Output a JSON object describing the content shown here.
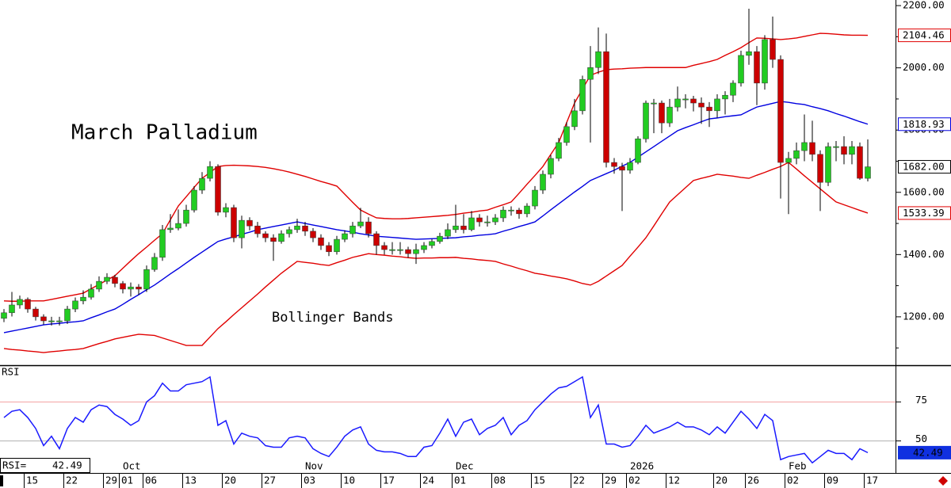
{
  "chart_data": [
    {
      "type": "candlestick",
      "title": "March Palladium",
      "annotation": "Bollinger Bands",
      "categories": [
        null,
        null,
        null,
        "15",
        null,
        null,
        null,
        null,
        "22",
        null,
        null,
        null,
        null,
        "29",
        null,
        "01",
        null,
        null,
        "06",
        null,
        null,
        null,
        null,
        "13",
        null,
        null,
        null,
        null,
        "20",
        null,
        null,
        null,
        null,
        "27",
        null,
        null,
        null,
        null,
        "03",
        null,
        null,
        null,
        null,
        "10",
        null,
        null,
        null,
        null,
        "17",
        null,
        null,
        null,
        null,
        "24",
        null,
        null,
        null,
        "01",
        null,
        null,
        null,
        null,
        "08",
        null,
        null,
        null,
        null,
        "15",
        null,
        null,
        null,
        null,
        "22",
        null,
        null,
        null,
        "29",
        null,
        null,
        "02",
        null,
        null,
        null,
        null,
        "12",
        null,
        null,
        null,
        null,
        null,
        "20",
        null,
        null,
        null,
        "26",
        null,
        null,
        null,
        null,
        "02",
        null,
        null,
        null,
        null,
        "09",
        null,
        null,
        null,
        null,
        "17"
      ],
      "month_ticks": [
        {
          "value": 15,
          "label": "Oct"
        },
        {
          "value": 38,
          "label": "Nov"
        },
        {
          "value": 57,
          "label": "Dec"
        },
        {
          "value": 79,
          "label": "2026"
        },
        {
          "value": 99,
          "label": "Feb"
        }
      ],
      "open": [
        1195,
        1213,
        1238,
        1256,
        1225,
        1200,
        1187,
        1187,
        1187,
        1225,
        1251,
        1263,
        1289,
        1314,
        1327,
        1307,
        1289,
        1296,
        1289,
        1352,
        1391,
        1480,
        1485,
        1500,
        1543,
        1607,
        1645,
        1683,
        1536,
        1551,
        1454,
        1510,
        1492,
        1467,
        1454,
        1442,
        1467,
        1480,
        1492,
        1475,
        1454,
        1429,
        1409,
        1449,
        1467,
        1492,
        1505,
        1467,
        1429,
        1416,
        1416,
        1416,
        1403,
        1416,
        1429,
        1442,
        1459,
        1480,
        1492,
        1480,
        1518,
        1505,
        1505,
        1518,
        1543,
        1543,
        1531,
        1556,
        1607,
        1658,
        1709,
        1760,
        1811,
        1862,
        1963,
        2001,
        2052,
        1696,
        1683,
        1671,
        1696,
        1772,
        1887,
        1887,
        1823,
        1874,
        1900,
        1900,
        1887,
        1874,
        1862,
        1900,
        1912,
        1951,
        2040,
        2052,
        1951,
        2091,
        2027,
        1696,
        1709,
        1734,
        1760,
        1722,
        1632,
        1747,
        1747,
        1722,
        1747,
        1645
      ],
      "high": [
        1225,
        1280,
        1268,
        1262,
        1232,
        1208,
        1200,
        1200,
        1235,
        1262,
        1285,
        1305,
        1330,
        1340,
        1335,
        1315,
        1310,
        1305,
        1365,
        1405,
        1495,
        1530,
        1545,
        1560,
        1620,
        1665,
        1700,
        1690,
        1565,
        1560,
        1525,
        1520,
        1505,
        1475,
        1465,
        1478,
        1490,
        1515,
        1505,
        1485,
        1465,
        1440,
        1460,
        1478,
        1505,
        1550,
        1520,
        1475,
        1440,
        1440,
        1440,
        1425,
        1435,
        1440,
        1450,
        1470,
        1500,
        1560,
        1530,
        1540,
        1530,
        1525,
        1530,
        1555,
        1555,
        1550,
        1565,
        1620,
        1670,
        1720,
        1775,
        1825,
        1900,
        1975,
        2070,
        2130,
        2110,
        1710,
        1695,
        1710,
        1780,
        1895,
        1900,
        1895,
        1900,
        1940,
        1915,
        1910,
        1905,
        1890,
        1915,
        1925,
        1960,
        2055,
        2190,
        2070,
        2105,
        2165,
        2040,
        1730,
        1760,
        1850,
        1830,
        1735,
        1760,
        1765,
        1780,
        1765,
        1760,
        1770
      ],
      "low": [
        1183,
        1201,
        1226,
        1213,
        1188,
        1175,
        1172,
        1172,
        1177,
        1215,
        1240,
        1255,
        1280,
        1305,
        1295,
        1275,
        1265,
        1270,
        1280,
        1345,
        1380,
        1470,
        1478,
        1490,
        1535,
        1595,
        1635,
        1525,
        1520,
        1440,
        1420,
        1478,
        1455,
        1440,
        1380,
        1435,
        1455,
        1470,
        1460,
        1440,
        1415,
        1395,
        1400,
        1440,
        1455,
        1485,
        1455,
        1400,
        1400,
        1400,
        1400,
        1390,
        1370,
        1405,
        1420,
        1435,
        1450,
        1470,
        1468,
        1475,
        1490,
        1490,
        1495,
        1505,
        1525,
        1515,
        1520,
        1545,
        1595,
        1645,
        1700,
        1750,
        1800,
        1850,
        1760,
        1980,
        1680,
        1660,
        1540,
        1660,
        1690,
        1760,
        1790,
        1790,
        1810,
        1860,
        1870,
        1860,
        1820,
        1810,
        1840,
        1850,
        1890,
        1940,
        2010,
        1880,
        1930,
        2000,
        1580,
        1530,
        1690,
        1700,
        1700,
        1540,
        1620,
        1700,
        1690,
        1690,
        1640,
        1635
      ],
      "close": [
        1213,
        1238,
        1256,
        1225,
        1200,
        1187,
        1187,
        1187,
        1225,
        1251,
        1263,
        1289,
        1314,
        1327,
        1307,
        1289,
        1296,
        1289,
        1352,
        1391,
        1480,
        1485,
        1500,
        1543,
        1607,
        1645,
        1683,
        1536,
        1551,
        1454,
        1510,
        1492,
        1467,
        1454,
        1442,
        1467,
        1480,
        1492,
        1475,
        1454,
        1429,
        1409,
        1449,
        1467,
        1492,
        1505,
        1467,
        1429,
        1416,
        1416,
        1416,
        1403,
        1416,
        1429,
        1442,
        1459,
        1480,
        1492,
        1480,
        1518,
        1505,
        1505,
        1518,
        1543,
        1543,
        1531,
        1556,
        1607,
        1658,
        1709,
        1760,
        1811,
        1862,
        1963,
        2001,
        2052,
        1696,
        1683,
        1671,
        1696,
        1772,
        1887,
        1887,
        1823,
        1874,
        1900,
        1900,
        1887,
        1874,
        1862,
        1900,
        1912,
        1951,
        2040,
        2052,
        1951,
        2091,
        2027,
        1696,
        1709,
        1734,
        1760,
        1722,
        1632,
        1747,
        1747,
        1722,
        1747,
        1645,
        1682
      ],
      "last_close_label": "1682.00",
      "up_color": "#22cc22",
      "down_color": "#cc0000",
      "wick_color": "#000000",
      "bands": [
        {
          "color": "#e00000",
          "values": [
            1251,
            1250,
            1250,
            1251,
            1251,
            1251,
            1256,
            1261,
            1266,
            1271,
            1276,
            1290,
            1304,
            1318,
            1332,
            1356,
            1380,
            1403,
            1424,
            1446,
            1467,
            1512,
            1556,
            1586,
            1616,
            1645,
            1664,
            1683,
            1686,
            1687,
            1686,
            1685,
            1683,
            1680,
            1676,
            1671,
            1665,
            1658,
            1651,
            1643,
            1635,
            1628,
            1620,
            1594,
            1568,
            1543,
            1530,
            1518,
            1516,
            1515,
            1515,
            1516,
            1518,
            1520,
            1522,
            1524,
            1526,
            1529,
            1533,
            1536,
            1540,
            1543,
            1552,
            1560,
            1569,
            1597,
            1626,
            1654,
            1683,
            1722,
            1760,
            1824,
            1887,
            1932,
            1976,
            1986,
            1994,
            1996,
            1997,
            1999,
            2000,
            2001,
            2001,
            2001,
            2001,
            2001,
            2001,
            2008,
            2014,
            2020,
            2027,
            2040,
            2052,
            2065,
            2081,
            2096,
            2095,
            2093,
            2091,
            2093,
            2096,
            2101,
            2106,
            2111,
            2110,
            2108,
            2106,
            2105,
            2105,
            2104.46
          ]
        },
        {
          "color": "#0000e0",
          "values": [
            1149,
            1154,
            1159,
            1164,
            1169,
            1174,
            1177,
            1179,
            1182,
            1184,
            1187,
            1197,
            1206,
            1216,
            1225,
            1240,
            1256,
            1271,
            1287,
            1302,
            1320,
            1338,
            1355,
            1373,
            1391,
            1408,
            1425,
            1442,
            1450,
            1457,
            1465,
            1472,
            1480,
            1485,
            1490,
            1495,
            1500,
            1505,
            1500,
            1495,
            1490,
            1485,
            1480,
            1476,
            1472,
            1467,
            1463,
            1459,
            1457,
            1455,
            1453,
            1451,
            1449,
            1450,
            1451,
            1452,
            1453,
            1454,
            1457,
            1459,
            1462,
            1464,
            1467,
            1475,
            1482,
            1490,
            1497,
            1505,
            1524,
            1544,
            1563,
            1582,
            1601,
            1619,
            1638,
            1649,
            1660,
            1671,
            1684,
            1696,
            1713,
            1730,
            1747,
            1764,
            1781,
            1798,
            1808,
            1817,
            1827,
            1836,
            1839,
            1843,
            1846,
            1849,
            1862,
            1874,
            1880,
            1886,
            1892,
            1889,
            1885,
            1882,
            1875,
            1869,
            1862,
            1853,
            1845,
            1836,
            1827,
            1818.93
          ]
        },
        {
          "color": "#e00000",
          "values": [
            1098,
            1095,
            1093,
            1090,
            1088,
            1085,
            1088,
            1090,
            1093,
            1095,
            1098,
            1106,
            1114,
            1121,
            1129,
            1134,
            1139,
            1144,
            1142,
            1140,
            1132,
            1124,
            1116,
            1108,
            1108,
            1108,
            1135,
            1162,
            1184,
            1207,
            1229,
            1251,
            1273,
            1296,
            1318,
            1340,
            1359,
            1378,
            1375,
            1372,
            1368,
            1365,
            1374,
            1382,
            1391,
            1397,
            1403,
            1400,
            1398,
            1395,
            1393,
            1390,
            1388,
            1389,
            1389,
            1390,
            1390,
            1391,
            1388,
            1386,
            1383,
            1381,
            1378,
            1370,
            1363,
            1355,
            1348,
            1340,
            1336,
            1331,
            1327,
            1322,
            1315,
            1307,
            1302,
            1314,
            1331,
            1348,
            1365,
            1395,
            1424,
            1454,
            1492,
            1531,
            1569,
            1592,
            1615,
            1638,
            1645,
            1651,
            1658,
            1655,
            1652,
            1648,
            1645,
            1655,
            1664,
            1674,
            1683,
            1696,
            1675,
            1653,
            1632,
            1611,
            1590,
            1569,
            1560,
            1551,
            1542,
            1533.39
          ]
        }
      ],
      "ylim": [
        1047,
        2218
      ],
      "yticks": [
        {
          "value": 2200,
          "label": "2200.00"
        },
        {
          "value": 2000,
          "label": "2000.00"
        },
        {
          "value": 1800,
          "label": "1800.00"
        },
        {
          "value": 1600,
          "label": "1600.00"
        },
        {
          "value": 1400,
          "label": "1400.00"
        },
        {
          "value": 1200,
          "label": "1200.00"
        }
      ],
      "minor_yticks": [
        2100,
        1900,
        1700,
        1500,
        1300,
        1100
      ]
    },
    {
      "type": "line",
      "ylabel": "RSI",
      "readout_label": "RSI=",
      "values": [
        65,
        69,
        70,
        65,
        58,
        47,
        53,
        45,
        58,
        65,
        62,
        70,
        73,
        72,
        67,
        64,
        60,
        63,
        75,
        79,
        87,
        82,
        82,
        86,
        87,
        88,
        91,
        60,
        63,
        48,
        55,
        53,
        52,
        47,
        46,
        46,
        52,
        53,
        52,
        45,
        42,
        40,
        46,
        53,
        57,
        59,
        48,
        44,
        43,
        43,
        42,
        40,
        40,
        46,
        47,
        55,
        64,
        53,
        62,
        64,
        54,
        58,
        60,
        65,
        54,
        60,
        63,
        70,
        75,
        80,
        84,
        85,
        88,
        91,
        65,
        73,
        48,
        48,
        46,
        47,
        53,
        60,
        55,
        57,
        59,
        62,
        59,
        59,
        57,
        54,
        59,
        55,
        62,
        69,
        64,
        58,
        67,
        63,
        38,
        40,
        41,
        42,
        36,
        40,
        44,
        42,
        42,
        38,
        45,
        42.49
      ],
      "color": "#1a1aff",
      "ylim": [
        30,
        98
      ],
      "yticks": [
        75,
        50
      ],
      "grid": true,
      "grid_colors": [
        "#f2a0a0",
        "#b0b0b0"
      ]
    }
  ]
}
